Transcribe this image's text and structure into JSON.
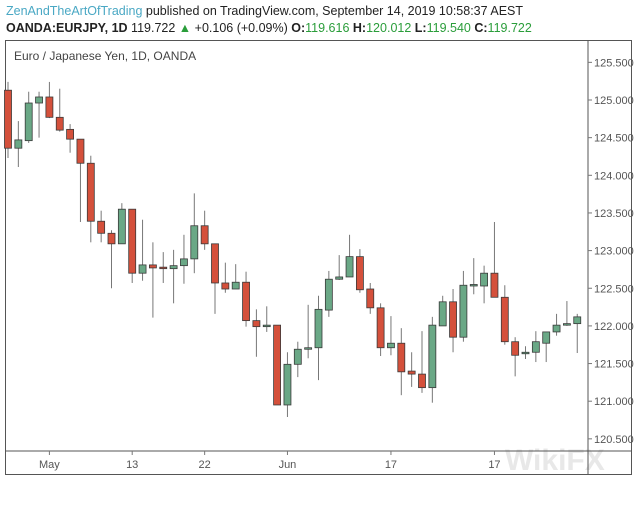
{
  "header": {
    "author": "ZenAndTheArtOfTrading",
    "published": "published on TradingView.com, September 14, 2019 10:58:37 AEST",
    "symbol": "OANDA:EURJPY, 1D",
    "last": "119.722",
    "change": "+0.106 (+0.09%)",
    "o_label": "O:",
    "o": "119.616",
    "h_label": "H:",
    "h": "120.012",
    "l_label": "L:",
    "l": "119.540",
    "c_label": "C:",
    "c": "119.722"
  },
  "watermark": "WikiFX",
  "colors": {
    "up": "#6aa886",
    "down": "#d4503b",
    "wick": "#777777"
  },
  "chart_data": {
    "type": "candlestick",
    "title": "Euro / Japanese Yen, 1D, OANDA",
    "ylim": [
      120.35,
      125.75
    ],
    "y_ticks": [
      "125.500",
      "125.000",
      "124.500",
      "124.000",
      "123.500",
      "123.000",
      "122.500",
      "122.000",
      "121.500",
      "121.000",
      "120.500"
    ],
    "x_ticks": [
      {
        "label": "May",
        "index": 4
      },
      {
        "label": "13",
        "index": 12
      },
      {
        "label": "22",
        "index": 19
      },
      {
        "label": "Jun",
        "index": 27
      },
      {
        "label": "17",
        "index": 37
      },
      {
        "label": "17",
        "index": 47
      }
    ],
    "ohlc": [
      [
        125.13,
        125.24,
        124.23,
        124.36
      ],
      [
        124.36,
        124.72,
        124.11,
        124.47
      ],
      [
        124.46,
        125.11,
        124.43,
        124.96
      ],
      [
        124.96,
        125.11,
        124.5,
        125.04
      ],
      [
        125.04,
        125.24,
        124.76,
        124.77
      ],
      [
        124.77,
        125.15,
        124.58,
        124.6
      ],
      [
        124.61,
        124.68,
        124.3,
        124.48
      ],
      [
        124.48,
        124.48,
        123.38,
        124.16
      ],
      [
        124.16,
        124.26,
        123.11,
        123.39
      ],
      [
        123.39,
        123.53,
        123.11,
        123.23
      ],
      [
        123.23,
        123.27,
        122.5,
        123.09
      ],
      [
        123.09,
        123.63,
        123.09,
        123.55
      ],
      [
        123.55,
        123.55,
        122.57,
        122.7
      ],
      [
        122.7,
        123.41,
        122.6,
        122.81
      ],
      [
        122.81,
        123.11,
        122.11,
        122.77
      ],
      [
        122.78,
        122.98,
        122.57,
        122.76
      ],
      [
        122.76,
        123.01,
        122.3,
        122.8
      ],
      [
        122.8,
        123.21,
        122.56,
        122.89
      ],
      [
        122.89,
        123.76,
        122.7,
        123.33
      ],
      [
        123.33,
        123.53,
        123.01,
        123.09
      ],
      [
        123.09,
        123.09,
        122.16,
        122.57
      ],
      [
        122.57,
        122.84,
        122.44,
        122.49
      ],
      [
        122.49,
        122.82,
        122.49,
        122.58
      ],
      [
        122.58,
        122.72,
        121.99,
        122.07
      ],
      [
        122.07,
        122.22,
        121.59,
        121.99
      ],
      [
        121.99,
        122.26,
        121.92,
        122.01
      ],
      [
        122.01,
        122.01,
        120.95,
        120.95
      ],
      [
        120.95,
        121.65,
        120.79,
        121.49
      ],
      [
        121.49,
        121.79,
        121.32,
        121.69
      ],
      [
        121.69,
        122.28,
        121.57,
        121.71
      ],
      [
        121.71,
        122.4,
        121.28,
        122.22
      ],
      [
        122.21,
        122.73,
        122.12,
        122.62
      ],
      [
        122.62,
        122.94,
        122.61,
        122.65
      ],
      [
        122.65,
        123.21,
        122.65,
        122.92
      ],
      [
        122.92,
        123.02,
        122.44,
        122.48
      ],
      [
        122.49,
        122.57,
        122.16,
        122.24
      ],
      [
        122.24,
        122.3,
        121.6,
        121.71
      ],
      [
        121.71,
        122.13,
        121.61,
        121.77
      ],
      [
        121.77,
        121.97,
        121.08,
        121.39
      ],
      [
        121.4,
        121.65,
        121.19,
        121.36
      ],
      [
        121.36,
        121.93,
        121.11,
        121.18
      ],
      [
        121.18,
        122.12,
        120.98,
        122.01
      ],
      [
        122.0,
        122.4,
        122.0,
        122.32
      ],
      [
        122.32,
        122.49,
        121.65,
        121.85
      ],
      [
        121.85,
        122.73,
        121.79,
        122.54
      ],
      [
        122.54,
        122.9,
        122.42,
        122.55
      ],
      [
        122.53,
        122.8,
        122.3,
        122.7
      ],
      [
        122.7,
        123.38,
        122.38,
        122.38
      ],
      [
        122.38,
        122.54,
        121.75,
        121.79
      ],
      [
        121.79,
        121.85,
        121.33,
        121.61
      ],
      [
        121.63,
        121.73,
        121.56,
        121.65
      ],
      [
        121.65,
        121.93,
        121.52,
        121.79
      ],
      [
        121.77,
        121.87,
        121.52,
        121.92
      ],
      [
        121.92,
        122.16,
        121.87,
        122.01
      ],
      [
        122.01,
        122.33,
        122.0,
        122.03
      ],
      [
        122.03,
        122.16,
        121.64,
        122.12
      ]
    ]
  }
}
